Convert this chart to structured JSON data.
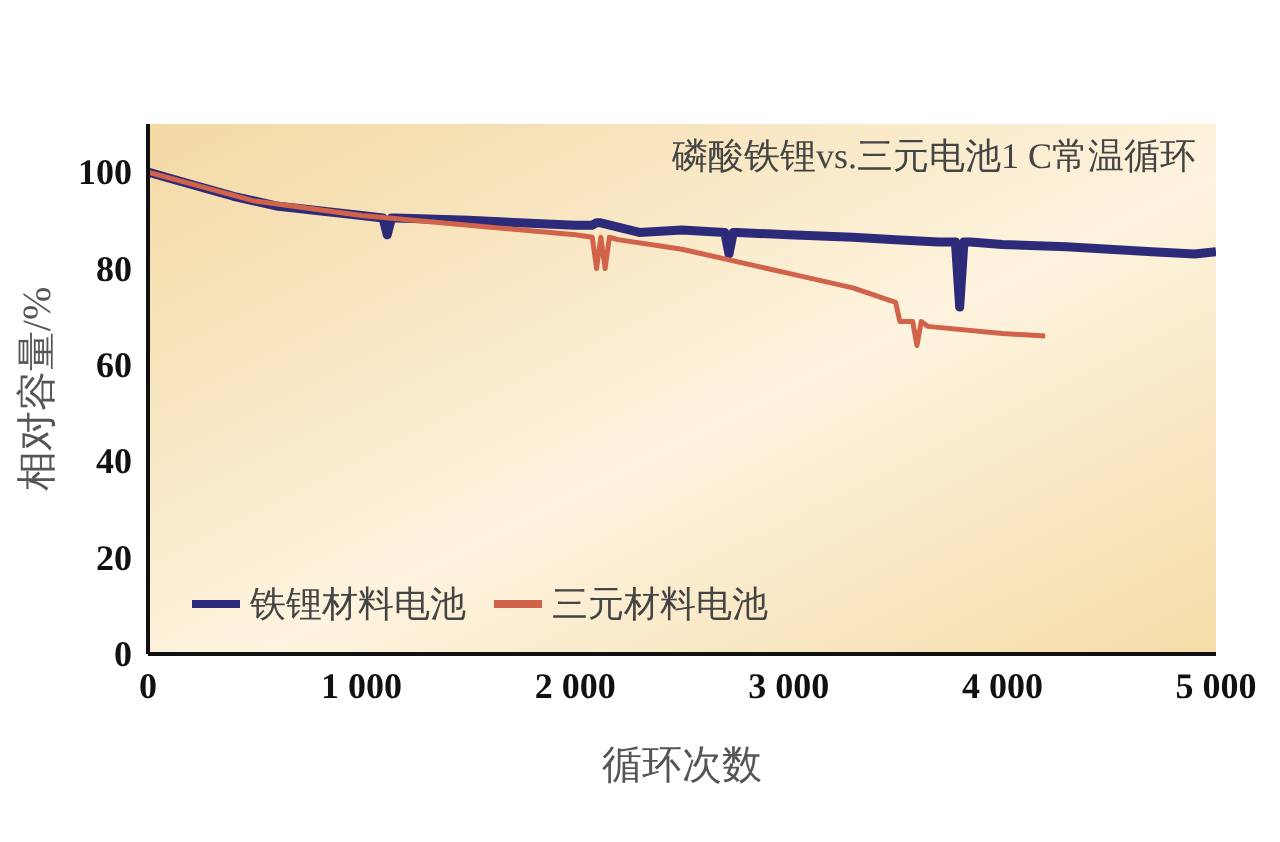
{
  "chart_data": {
    "type": "line",
    "title": "磷酸铁锂vs.三元电池1 C常温循环",
    "xlabel": "循环次数",
    "ylabel": "相对容量/%",
    "xlim": [
      0,
      5000
    ],
    "xticks": [
      0,
      {
        "value": 1000,
        "label": "1 000"
      },
      {
        "value": 2000,
        "label": "2 000"
      },
      {
        "value": 3000,
        "label": "3 000"
      },
      {
        "value": 4000,
        "label": "4 000"
      },
      {
        "value": 5000,
        "label": "5 000"
      }
    ],
    "ylim": [
      0,
      110
    ],
    "yticks": [
      0,
      20,
      40,
      60,
      80,
      100
    ],
    "grid": false,
    "legend": "bottom left",
    "marker": "none",
    "line_style": "solid",
    "series": [
      {
        "name": "铁锂材料电池",
        "color": "#2e2a7a",
        "x": [
          0,
          200,
          400,
          600,
          800,
          1000,
          1100,
          1120,
          1140,
          1160,
          1500,
          2000,
          2080,
          2100,
          2120,
          2300,
          2500,
          2700,
          2720,
          2740,
          2760,
          3000,
          3300,
          3500,
          3700,
          3780,
          3800,
          3820,
          3850,
          4000,
          4300,
          4500,
          4700,
          4900,
          5000
        ],
        "values": [
          100,
          97.5,
          95,
          93,
          92,
          91,
          90.5,
          87,
          90.5,
          90.5,
          90,
          89,
          89,
          89.5,
          89.5,
          87.5,
          88,
          87.5,
          83,
          87.5,
          87.5,
          87,
          86.5,
          86,
          85.5,
          85.5,
          72,
          85.5,
          85.5,
          85,
          84.5,
          84,
          83.5,
          83,
          83.5
        ]
      },
      {
        "name": "三元材料电池",
        "color": "#d0634a",
        "x": [
          0,
          250,
          500,
          1000,
          1500,
          2000,
          2080,
          2100,
          2120,
          2140,
          2160,
          2200,
          2500,
          3000,
          3300,
          3500,
          3520,
          3580,
          3600,
          3620,
          3650,
          4000,
          4200
        ],
        "values": [
          100,
          97,
          94,
          91,
          89,
          87,
          86.5,
          80,
          86.5,
          80,
          86.5,
          86,
          84,
          79,
          76,
          73,
          69,
          69,
          64,
          69,
          68,
          66.5,
          66
        ]
      }
    ]
  }
}
